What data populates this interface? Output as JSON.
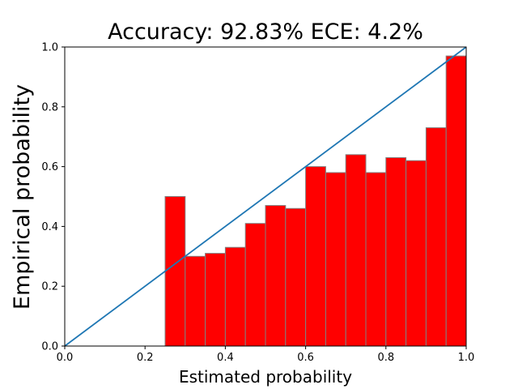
{
  "chart_data": {
    "type": "bar",
    "title": "Accuracy: 92.83% ECE: 4.2%",
    "xlabel": "Estimated probability",
    "ylabel": "Empirical probability",
    "xlim": [
      0.0,
      1.0
    ],
    "ylim": [
      0.0,
      1.0
    ],
    "x_ticks": [
      0.0,
      0.2,
      0.4,
      0.6,
      0.8,
      1.0
    ],
    "y_ticks": [
      0.0,
      0.2,
      0.4,
      0.6,
      0.8,
      1.0
    ],
    "x_tick_labels": [
      "0.0",
      "0.2",
      "0.4",
      "0.6",
      "0.8",
      "1.0"
    ],
    "y_tick_labels": [
      "0.0",
      "0.2",
      "0.4",
      "0.6",
      "0.8",
      "1.0"
    ],
    "grid": false,
    "bin_width": 0.05,
    "bins": [
      {
        "left": 0.25,
        "value": 0.5
      },
      {
        "left": 0.3,
        "value": 0.3
      },
      {
        "left": 0.35,
        "value": 0.31
      },
      {
        "left": 0.4,
        "value": 0.33
      },
      {
        "left": 0.45,
        "value": 0.41
      },
      {
        "left": 0.5,
        "value": 0.47
      },
      {
        "left": 0.55,
        "value": 0.46
      },
      {
        "left": 0.6,
        "value": 0.6
      },
      {
        "left": 0.65,
        "value": 0.58
      },
      {
        "left": 0.7,
        "value": 0.64
      },
      {
        "left": 0.75,
        "value": 0.58
      },
      {
        "left": 0.8,
        "value": 0.63
      },
      {
        "left": 0.85,
        "value": 0.62
      },
      {
        "left": 0.9,
        "value": 0.73
      },
      {
        "left": 0.95,
        "value": 0.97
      }
    ],
    "reference_line": {
      "from": [
        0.0,
        0.0
      ],
      "to": [
        1.0,
        1.0
      ]
    },
    "colors": {
      "bar_fill": "#ff0000",
      "bar_edge": "#808080",
      "diagonal": "#1f77b4",
      "axes": "#000000"
    }
  }
}
